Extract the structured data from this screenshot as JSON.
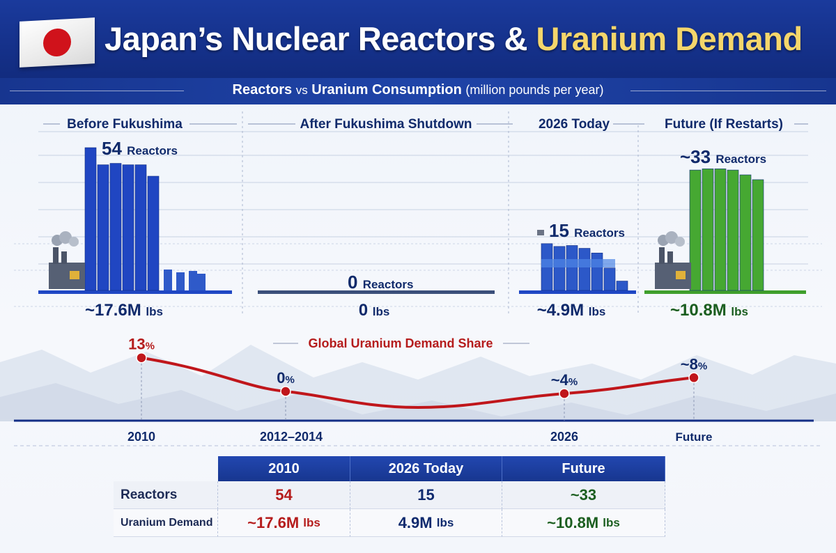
{
  "header": {
    "title_main": "Japan’s Nuclear Reactors & ",
    "title_highlight": "Uranium Demand",
    "subtitle_bold1": "Reactors",
    "subtitle_vs": "vs",
    "subtitle_bold2": "Uranium Consumption",
    "subtitle_unit": "(million pounds per year)",
    "flag_icon": "japan-flag-icon"
  },
  "colors": {
    "navy": "#142f86",
    "bar_blue": "#1f47c4",
    "bar_green": "#3f9f2c",
    "line_red": "#c0161b",
    "gold": "#f5d66b"
  },
  "chart_data": [
    {
      "type": "bar",
      "title": "",
      "panels": [
        {
          "label": "Before Fukushima",
          "reactors": 54,
          "reactors_label": "54",
          "reactors_unit": "Reactors",
          "uranium_label": "~17.6M",
          "uranium_unit": "lbs",
          "uranium_mlbs": 17.6,
          "color": "blue"
        },
        {
          "label": "After Fukushima Shutdown",
          "reactors": 0,
          "reactors_label": "0",
          "reactors_unit": "Reactors",
          "uranium_label": "0",
          "uranium_unit": "lbs",
          "uranium_mlbs": 0,
          "color": "blue"
        },
        {
          "label": "2026 Today",
          "reactors": 15,
          "reactors_label": "15",
          "reactors_unit": "Reactors",
          "uranium_label": "~4.9M",
          "uranium_unit": "lbs",
          "uranium_mlbs": 4.9,
          "color": "blue"
        },
        {
          "label": "Future (If Restarts)",
          "reactors": 33,
          "reactors_label": "~33",
          "reactors_unit": "Reactors",
          "uranium_label": "~10.8M",
          "uranium_unit": "lbs",
          "uranium_mlbs": 10.8,
          "color": "green"
        }
      ]
    },
    {
      "type": "line",
      "title": "Global Uranium Demand Share",
      "x": [
        "2010",
        "2012–2014",
        "2026",
        "Future"
      ],
      "values": [
        13,
        0,
        4,
        8
      ],
      "value_labels": [
        "13",
        "0",
        "~4",
        "~8"
      ],
      "unit": "%",
      "ylim": [
        0,
        14
      ]
    },
    {
      "type": "table",
      "columns": [
        "",
        "2010",
        "2026 Today",
        "Future"
      ],
      "rows": [
        {
          "label": "Reactors",
          "values": [
            {
              "num": "54",
              "unit": ""
            },
            {
              "num": "15",
              "unit": ""
            },
            {
              "num": "~33",
              "unit": ""
            }
          ]
        },
        {
          "label": "Uranium Demand",
          "values": [
            {
              "num": "~17.6M",
              "unit": "lbs"
            },
            {
              "num": "4.9M",
              "unit": "lbs"
            },
            {
              "num": "~10.8M",
              "unit": "lbs"
            }
          ]
        }
      ]
    }
  ]
}
